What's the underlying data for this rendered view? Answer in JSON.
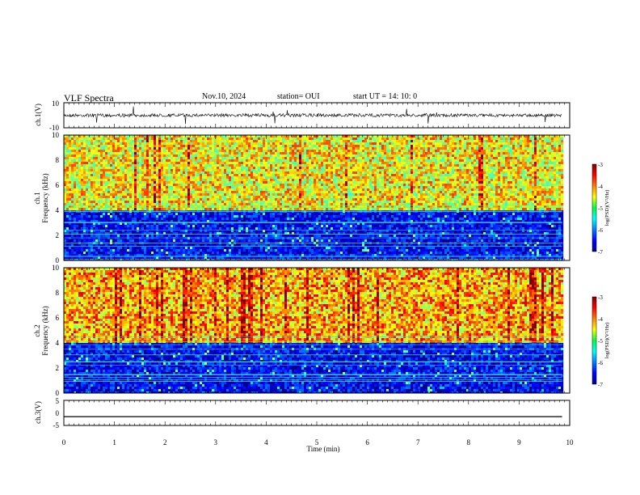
{
  "header": {
    "title": "VLF Spectra",
    "date": "Nov.10, 2024",
    "station": "station= OUI",
    "start": "start  UT  =   14: 10: 0"
  },
  "chart_data": {
    "type": "heatmap",
    "xlabel": "Time  (min)",
    "xlim": [
      0,
      10
    ],
    "x_ticks": [
      "0",
      "1",
      "2",
      "3",
      "4",
      "5",
      "6",
      "7",
      "8",
      "9",
      "10"
    ],
    "panels": [
      {
        "kind": "waveform",
        "ylabel": "ch.1(V)",
        "ylim": [
          -10,
          10
        ],
        "y_ticks": [
          "10",
          "-10"
        ],
        "description_level": "noisy waveform around ~0 V with sporadic spikes"
      },
      {
        "kind": "spectrogram",
        "ylabel_line1": "ch.1",
        "ylabel_line2": "Frequency  (kHz)",
        "ylim": [
          0,
          10
        ],
        "y_ticks": [
          "0",
          "2",
          "4",
          "6",
          "8",
          "10"
        ],
        "colorbar": {
          "label": "log(PSD)(V²/Hz)",
          "range": [
            -7,
            -3
          ],
          "ticks": [
            "-3",
            "-4",
            "-5",
            "-6",
            "-7"
          ]
        },
        "intensity_upper_band_log": -4.5,
        "intensity_lower_band_log": -6.5,
        "band_edge_khz": 4
      },
      {
        "kind": "spectrogram",
        "ylabel_line1": "ch.2",
        "ylabel_line2": "Frequency  (kHz)",
        "ylim": [
          0,
          10
        ],
        "y_ticks": [
          "0",
          "2",
          "4",
          "6",
          "8",
          "10"
        ],
        "colorbar": {
          "label": "log(PSD)(V²/Hz)",
          "range": [
            -7,
            -3
          ],
          "ticks": [
            "-3",
            "-4",
            "-5",
            "-6",
            "-7"
          ]
        },
        "intensity_upper_band_log": -4.2,
        "intensity_lower_band_log": -6.5,
        "band_edge_khz": 4
      },
      {
        "kind": "waveform",
        "ylabel": "ch.3(V)",
        "ylim": [
          -5,
          5
        ],
        "y_ticks": [
          "5",
          "0",
          "-5"
        ],
        "constant_value": -1.5
      }
    ],
    "data_end_min": 9.85
  }
}
